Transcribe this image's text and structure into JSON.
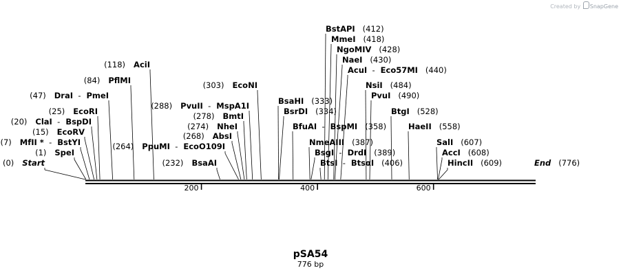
{
  "credit": {
    "prefix": "Created by",
    "brand": "SnapGene",
    "icon": "snapgene-logo-icon"
  },
  "plasmid": {
    "name": "pSA54",
    "length_label": "776 bp"
  },
  "map": {
    "length": 776,
    "ticks": [
      200,
      400,
      600
    ],
    "labels": [
      {
        "pos": 0,
        "parts": [
          [
            "(0)",
            "pos"
          ],
          [
            "Start",
            "ital"
          ]
        ]
      },
      {
        "pos": 232,
        "parts": [
          [
            "(232)",
            "pos"
          ],
          [
            "BsaAI",
            "enz"
          ]
        ]
      },
      {
        "pos": 1,
        "parts": [
          [
            "(1)",
            "pos"
          ],
          [
            "SpeI",
            "enz"
          ]
        ]
      },
      {
        "pos": 264,
        "parts": [
          [
            "(264)",
            "pos"
          ],
          [
            "PpuMI",
            "enz"
          ],
          [
            "-",
            "sep"
          ],
          [
            "EcoO109I",
            "enz"
          ]
        ]
      },
      {
        "pos": 7,
        "parts": [
          [
            "(7)",
            "pos"
          ],
          [
            "MfII *",
            "enz"
          ],
          [
            "-",
            "sep"
          ],
          [
            "BstYI",
            "enz"
          ]
        ]
      },
      {
        "pos": 268,
        "parts": [
          [
            "(268)",
            "pos"
          ],
          [
            "AbsI",
            "enz"
          ]
        ]
      },
      {
        "pos": 15,
        "parts": [
          [
            "(15)",
            "pos"
          ],
          [
            "EcoRV",
            "enz"
          ]
        ]
      },
      {
        "pos": 274,
        "parts": [
          [
            "(274)",
            "pos"
          ],
          [
            "NheI",
            "enz"
          ]
        ]
      },
      {
        "pos": 20,
        "parts": [
          [
            "(20)",
            "pos"
          ],
          [
            "ClaI",
            "enz"
          ],
          [
            "-",
            "sep"
          ],
          [
            "BspDI",
            "enz"
          ]
        ]
      },
      {
        "pos": 278,
        "parts": [
          [
            "(278)",
            "pos"
          ],
          [
            "BmtI",
            "enz"
          ]
        ]
      },
      {
        "pos": 25,
        "parts": [
          [
            "(25)",
            "pos"
          ],
          [
            "EcoRI",
            "enz"
          ]
        ]
      },
      {
        "pos": 288,
        "parts": [
          [
            "(288)",
            "pos"
          ],
          [
            "PvuII",
            "enz"
          ],
          [
            "-",
            "sep"
          ],
          [
            "MspA1I",
            "enz"
          ]
        ]
      },
      {
        "pos": 47,
        "parts": [
          [
            "(47)",
            "pos"
          ],
          [
            "DraI",
            "enz"
          ],
          [
            "-",
            "sep"
          ],
          [
            "PmeI",
            "enz"
          ]
        ]
      },
      {
        "pos": 84,
        "parts": [
          [
            "(84)",
            "pos"
          ],
          [
            "PflMI",
            "enz"
          ]
        ]
      },
      {
        "pos": 303,
        "parts": [
          [
            "(303)",
            "pos"
          ],
          [
            "EcoNI",
            "enz"
          ]
        ]
      },
      {
        "pos": 118,
        "parts": [
          [
            "(118)",
            "pos"
          ],
          [
            "AciI",
            "enz"
          ]
        ]
      },
      {
        "pos": 333,
        "parts": [
          [
            "BsaHI",
            "enz"
          ],
          [
            "(333)",
            "pos"
          ]
        ]
      },
      {
        "pos": 334,
        "parts": [
          [
            "BsrDI",
            "enz"
          ],
          [
            "(334)",
            "pos"
          ]
        ]
      },
      {
        "pos": 358,
        "parts": [
          [
            "BfuAI",
            "enz"
          ],
          [
            "-",
            "sep"
          ],
          [
            "BspMI",
            "enz"
          ],
          [
            "(358)",
            "pos"
          ]
        ]
      },
      {
        "pos": 387,
        "parts": [
          [
            "NmeAIII",
            "enz"
          ],
          [
            "(387)",
            "pos"
          ]
        ]
      },
      {
        "pos": 389,
        "parts": [
          [
            "BsgI",
            "enz"
          ],
          [
            "-",
            "sep"
          ],
          [
            "DrdI",
            "enz"
          ],
          [
            "(389)",
            "pos"
          ]
        ]
      },
      {
        "pos": 406,
        "parts": [
          [
            "BtsI",
            "enz"
          ],
          [
            "-",
            "sep"
          ],
          [
            "BtsαI",
            "enz"
          ],
          [
            "(406)",
            "pos"
          ]
        ]
      },
      {
        "pos": 412,
        "parts": [
          [
            "BstAPI",
            "enz"
          ],
          [
            "(412)",
            "pos"
          ]
        ]
      },
      {
        "pos": 418,
        "parts": [
          [
            "MmeI",
            "enz"
          ],
          [
            "(418)",
            "pos"
          ]
        ]
      },
      {
        "pos": 428,
        "parts": [
          [
            "NgoMIV",
            "enz"
          ],
          [
            "(428)",
            "pos"
          ]
        ]
      },
      {
        "pos": 430,
        "parts": [
          [
            "NaeI",
            "enz"
          ],
          [
            "(430)",
            "pos"
          ]
        ]
      },
      {
        "pos": 440,
        "parts": [
          [
            "AcuI",
            "enz"
          ],
          [
            "-",
            "sep"
          ],
          [
            "Eco57MI",
            "enz"
          ],
          [
            "(440)",
            "pos"
          ]
        ]
      },
      {
        "pos": 484,
        "parts": [
          [
            "NsiI",
            "enz"
          ],
          [
            "(484)",
            "pos"
          ]
        ]
      },
      {
        "pos": 490,
        "parts": [
          [
            "PvuI",
            "enz"
          ],
          [
            "(490)",
            "pos"
          ]
        ]
      },
      {
        "pos": 528,
        "parts": [
          [
            "BtgI",
            "enz"
          ],
          [
            "(528)",
            "pos"
          ]
        ]
      },
      {
        "pos": 558,
        "parts": [
          [
            "HaeII",
            "enz"
          ],
          [
            "(558)",
            "pos"
          ]
        ]
      },
      {
        "pos": 607,
        "parts": [
          [
            "SalI",
            "enz"
          ],
          [
            "(607)",
            "pos"
          ]
        ]
      },
      {
        "pos": 608,
        "parts": [
          [
            "AccI",
            "enz"
          ],
          [
            "(608)",
            "pos"
          ]
        ]
      },
      {
        "pos": 609,
        "parts": [
          [
            "HincII",
            "enz"
          ],
          [
            "(609)",
            "pos"
          ]
        ]
      },
      {
        "pos": 776,
        "parts": [
          [
            "End",
            "ital"
          ],
          [
            "(776)",
            "pos"
          ]
        ]
      }
    ]
  }
}
